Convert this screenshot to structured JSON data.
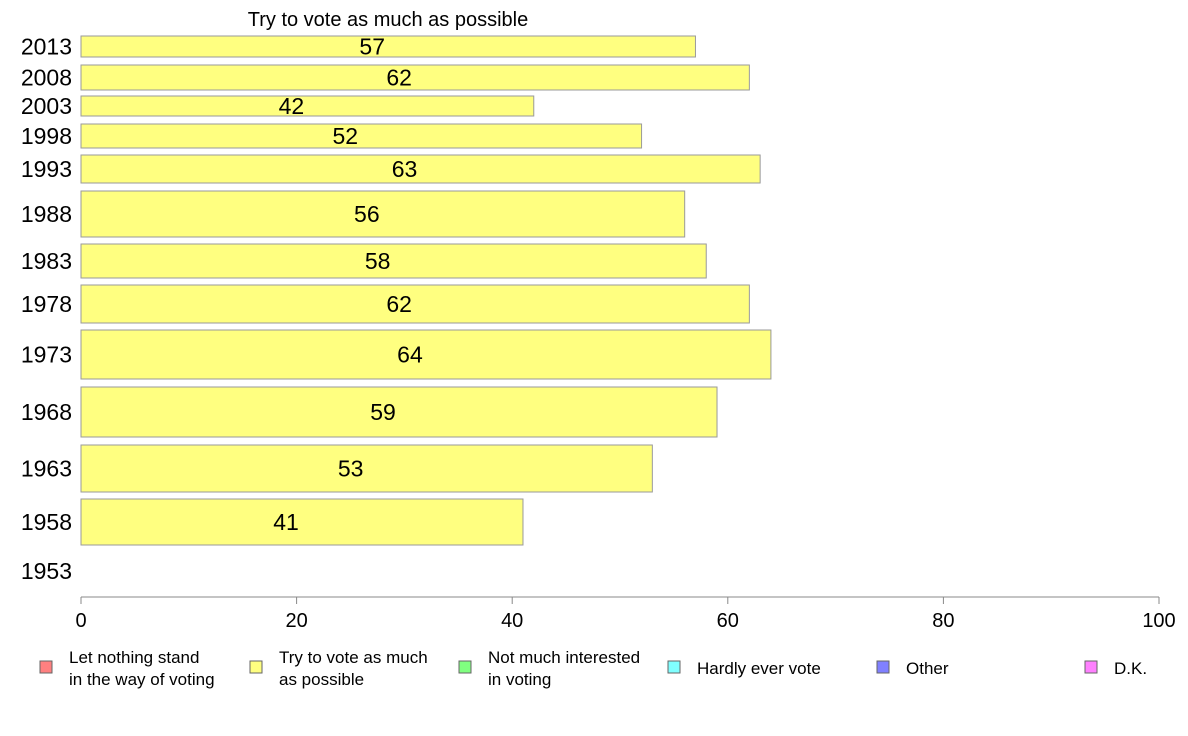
{
  "chart_data": {
    "type": "bar",
    "orientation": "horizontal",
    "title": "Try to vote as much as possible",
    "xlabel": "",
    "ylabel": "",
    "xlim": [
      0,
      100
    ],
    "x_ticks": [
      "0",
      "20",
      "40",
      "60",
      "80",
      "100"
    ],
    "grid": false,
    "legend_position": "bottom",
    "categories": [
      "2013",
      "2008",
      "2003",
      "1998",
      "1993",
      "1988",
      "1983",
      "1978",
      "1973",
      "1968",
      "1963",
      "1958",
      "1953"
    ],
    "values": [
      57,
      62,
      42,
      52,
      63,
      56,
      58,
      62,
      64,
      59,
      53,
      41,
      null
    ],
    "value_labels": [
      "57",
      "62",
      "42",
      "52",
      "63",
      "56",
      "58",
      "62",
      "64",
      "59",
      "53",
      "41",
      ""
    ],
    "series_color": "#ffff80",
    "legend": [
      {
        "label_lines": [
          "Let nothing stand",
          "in the way of voting"
        ],
        "color": "#ff8080"
      },
      {
        "label_lines": [
          "Try to vote as much",
          "as possible"
        ],
        "color": "#ffff80"
      },
      {
        "label_lines": [
          "Not much interested",
          "in voting"
        ],
        "color": "#80ff80"
      },
      {
        "label_lines": [
          "Hardly ever vote"
        ],
        "color": "#80ffff"
      },
      {
        "label_lines": [
          "Other"
        ],
        "color": "#8080ff"
      },
      {
        "label_lines": [
          "D.K."
        ],
        "color": "#ff80ff"
      }
    ]
  }
}
